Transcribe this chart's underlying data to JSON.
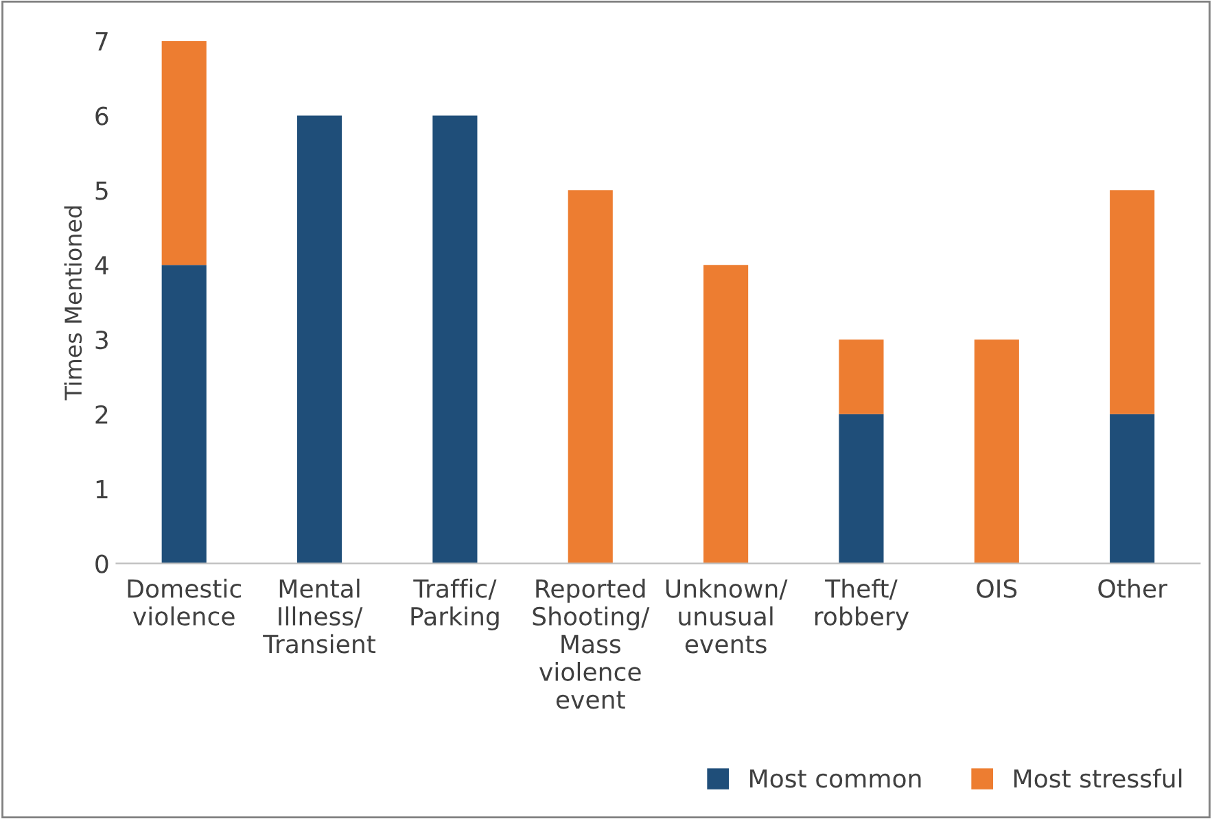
{
  "chart_data": {
    "type": "bar",
    "stacked": true,
    "ylabel": "Times Mentioned",
    "categories": [
      "Domestic\nviolence",
      "Mental\nIllness/\nTransient",
      "Traffic/\nParking",
      "Reported\nShooting/\nMass\nviolence\nevent",
      "Unknown/\nunusual\nevents",
      "Theft/\nrobbery",
      "OIS",
      "Other"
    ],
    "series": [
      {
        "name": "Most common",
        "color": "#1f4e79",
        "values": [
          4,
          6,
          6,
          0,
          0,
          2,
          0,
          2
        ]
      },
      {
        "name": "Most stressful",
        "color": "#ed7d31",
        "values": [
          3,
          0,
          0,
          5,
          4,
          1,
          3,
          3
        ]
      }
    ],
    "ylim": [
      0,
      7
    ],
    "yticks": [
      0,
      1,
      2,
      3,
      4,
      5,
      6,
      7
    ],
    "grid": false,
    "legend": "bottom right"
  }
}
